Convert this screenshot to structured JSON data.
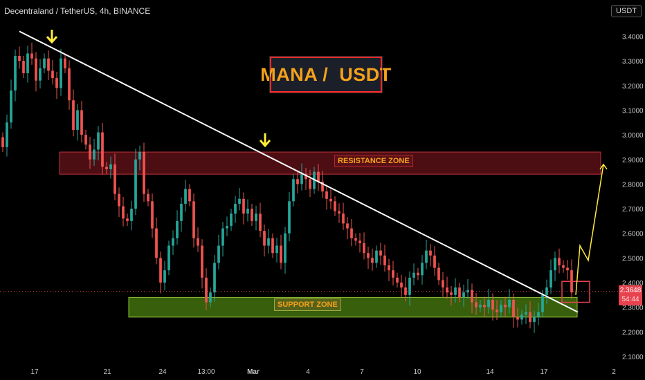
{
  "header": {
    "symbol_line": "Decentraland / TetherUS, 4h, BINANCE",
    "currency_button": "USDT"
  },
  "annotations": {
    "title": "MANA /  USDT",
    "resistance_label": "RESISTANCE ZONE",
    "support_label": "SUPPORT ZONE"
  },
  "price_tag": {
    "price": "2.3648",
    "countdown": "54:44"
  },
  "colors": {
    "up": "#26a69a",
    "down": "#ef5350",
    "resistance_fill": "#8a1a22",
    "support_fill": "#4a7f10",
    "accent": "#f5a219",
    "arrow": "#ffeb3b"
  },
  "chart_data": {
    "type": "candlestick",
    "symbol": "Decentraland / TetherUS",
    "interval": "4h",
    "exchange": "BINANCE",
    "y_ticks": [
      "3.4000",
      "3.3000",
      "3.2000",
      "3.1000",
      "3.0000",
      "2.9000",
      "2.8000",
      "2.7000",
      "2.6000",
      "2.5000",
      "2.4000",
      "2.3000",
      "2.2000",
      "2.1000"
    ],
    "ylim": [
      2.07,
      3.47
    ],
    "x_ticks": [
      "17",
      "21",
      "24",
      "13:00",
      "Mar",
      "4",
      "7",
      "10",
      "14",
      "17",
      "2"
    ],
    "last_price": 2.3648,
    "resistance_zone": [
      2.84,
      2.93
    ],
    "support_zone": [
      2.26,
      2.34
    ],
    "trendline": {
      "from_price": 3.42,
      "to_price": 2.28
    },
    "projection_prices": [
      2.35,
      2.55,
      2.49,
      2.88
    ],
    "closes": [
      2.95,
      3.05,
      3.18,
      3.32,
      3.3,
      3.25,
      3.33,
      3.31,
      3.22,
      3.27,
      3.31,
      3.26,
      3.23,
      3.19,
      3.31,
      3.27,
      3.14,
      3.02,
      3.1,
      3.0,
      2.96,
      2.9,
      2.94,
      3.01,
      2.87,
      2.86,
      2.88,
      2.76,
      2.71,
      2.66,
      2.65,
      2.7,
      2.9,
      2.93,
      2.76,
      2.73,
      2.62,
      2.5,
      2.4,
      2.45,
      2.55,
      2.58,
      2.65,
      2.72,
      2.78,
      2.73,
      2.58,
      2.55,
      2.42,
      2.32,
      2.36,
      2.48,
      2.55,
      2.62,
      2.63,
      2.68,
      2.72,
      2.74,
      2.68,
      2.7,
      2.65,
      2.68,
      2.61,
      2.55,
      2.58,
      2.52,
      2.55,
      2.48,
      2.6,
      2.73,
      2.82,
      2.8,
      2.84,
      2.82,
      2.78,
      2.85,
      2.81,
      2.77,
      2.74,
      2.73,
      2.69,
      2.68,
      2.64,
      2.62,
      2.58,
      2.57,
      2.56,
      2.52,
      2.5,
      2.48,
      2.53,
      2.51,
      2.47,
      2.45,
      2.42,
      2.4,
      2.38,
      2.35,
      2.42,
      2.44,
      2.43,
      2.48,
      2.53,
      2.51,
      2.46,
      2.41,
      2.38,
      2.36,
      2.35,
      2.38,
      2.34,
      2.36,
      2.37,
      2.32,
      2.3,
      2.31,
      2.3,
      2.33,
      2.29,
      2.28,
      2.31,
      2.3,
      2.33,
      2.26,
      2.25,
      2.27,
      2.28,
      2.24,
      2.26,
      2.28,
      2.35,
      2.38,
      2.45,
      2.5,
      2.47,
      2.46,
      2.45,
      2.36
    ]
  }
}
